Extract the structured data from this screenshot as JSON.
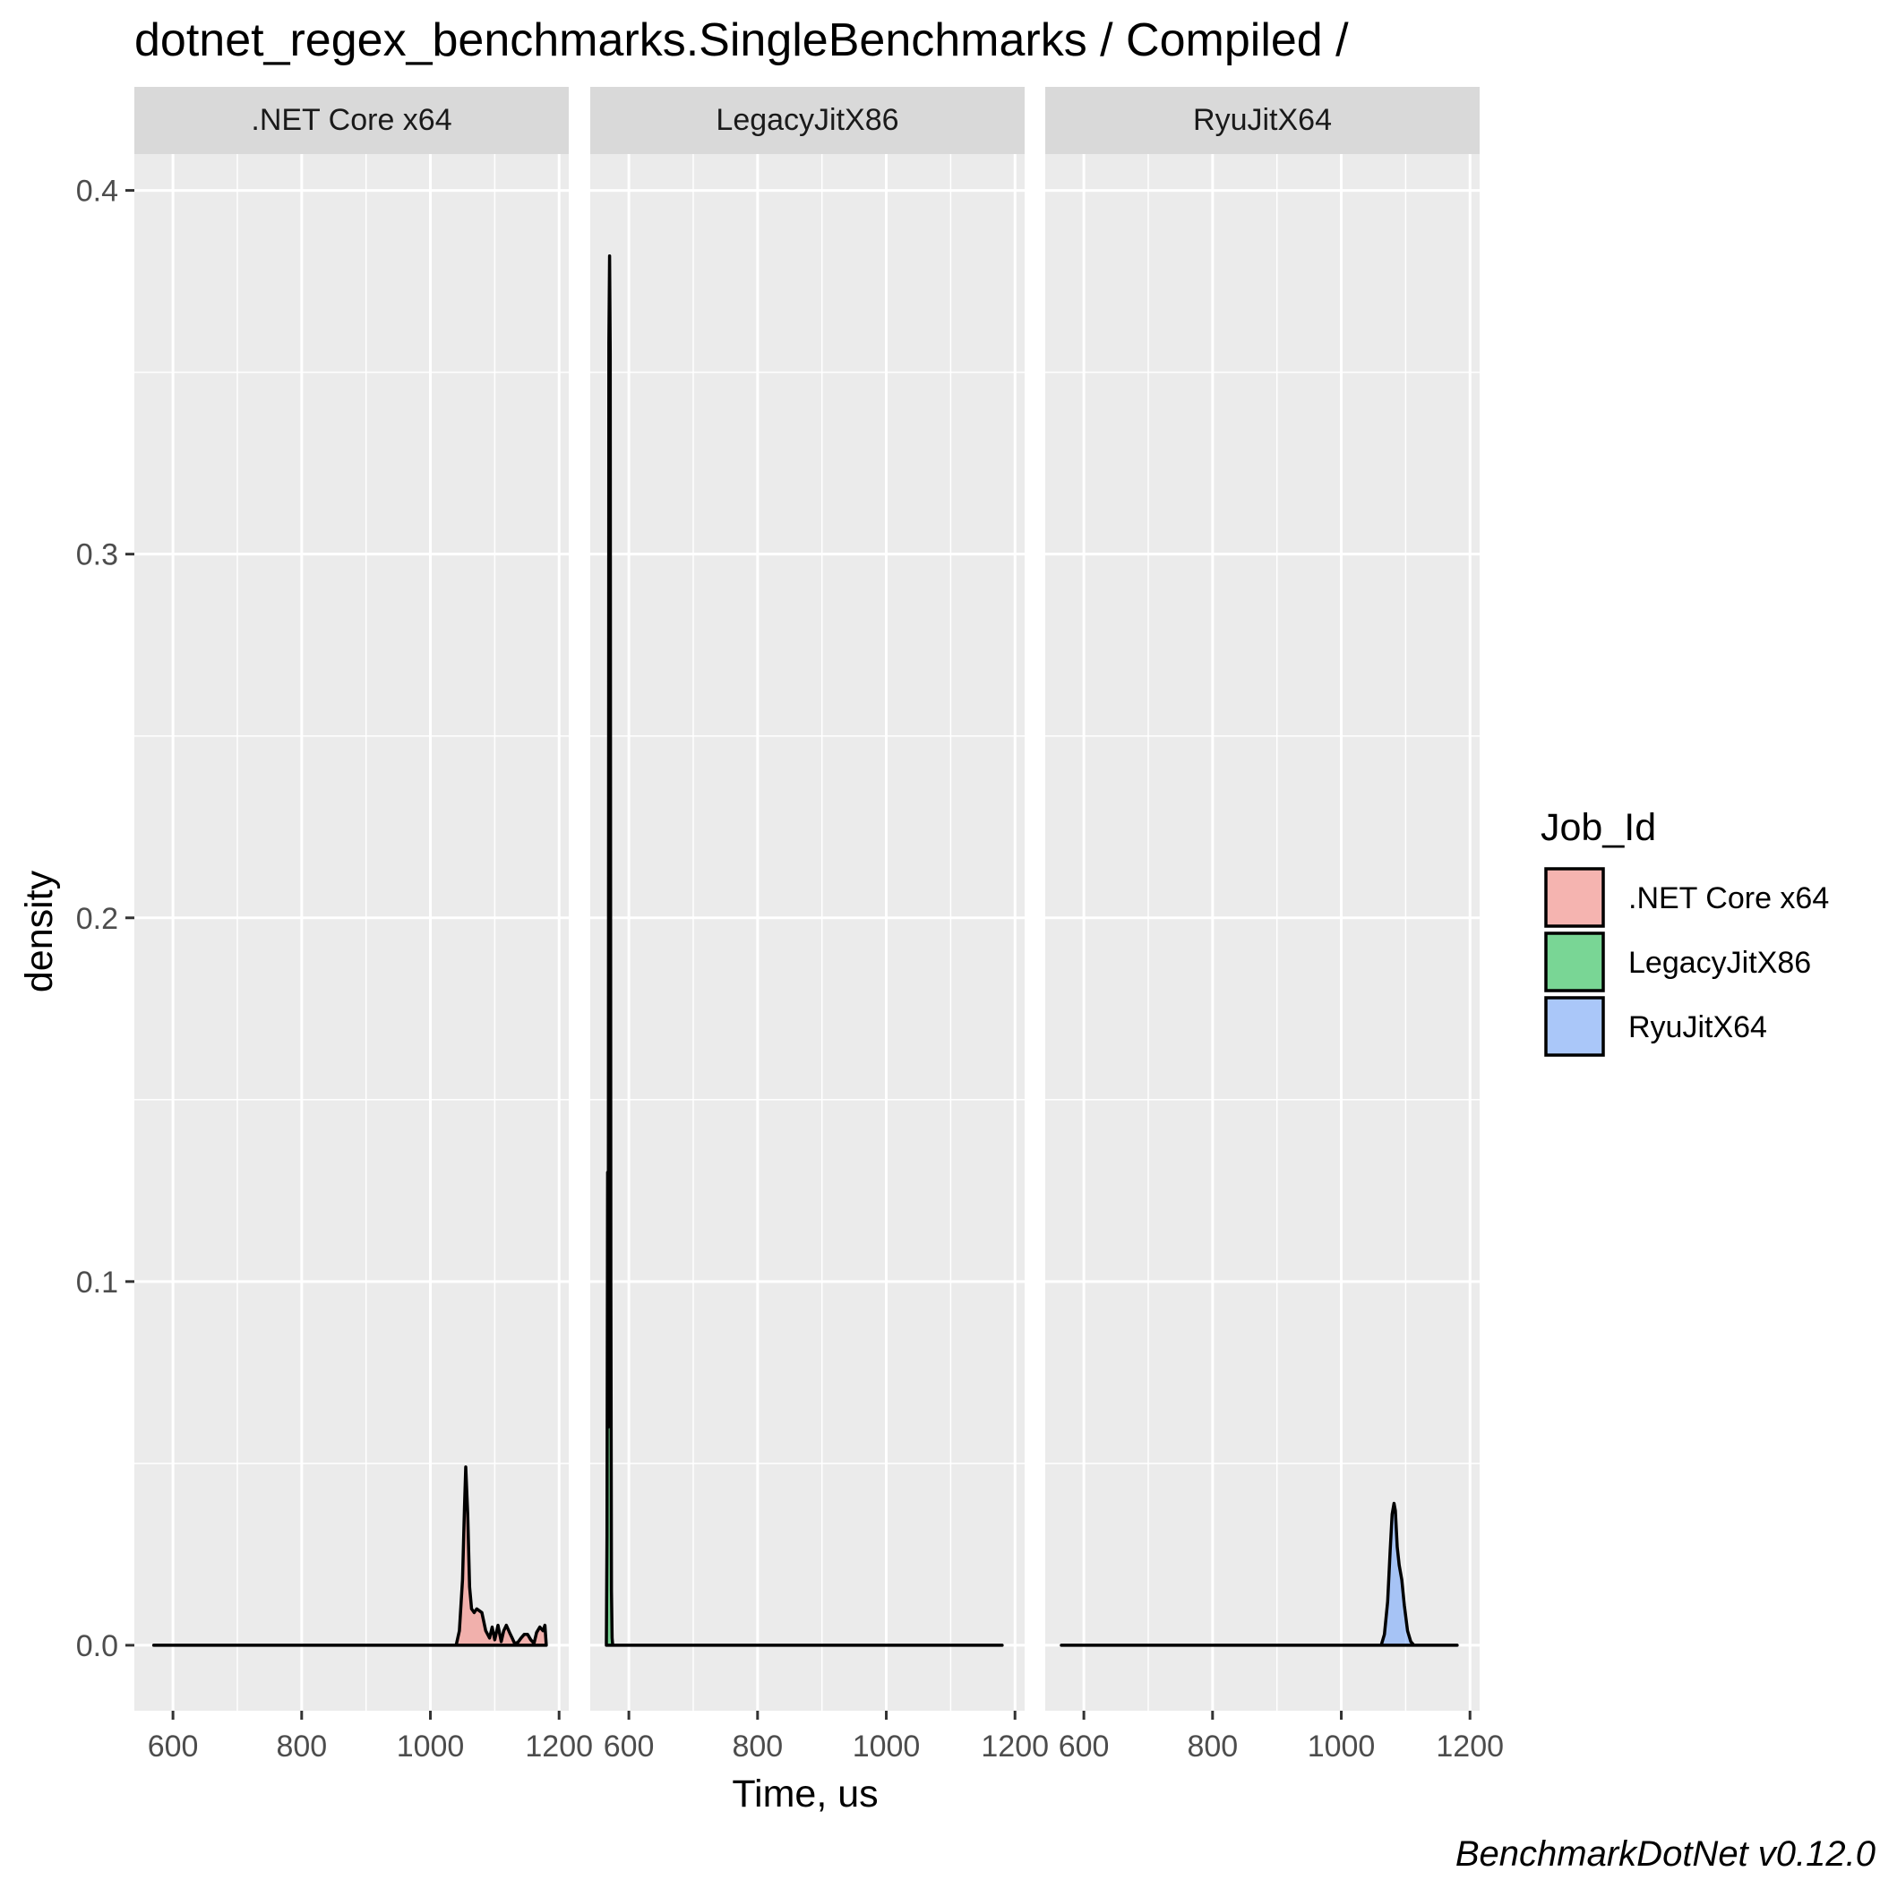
{
  "chart_data": {
    "type": "density",
    "title": "dotnet_regex_benchmarks.SingleBenchmarks / Compiled /",
    "xlabel": "Time, us",
    "ylabel": "density",
    "xlim": [
      540,
      1215
    ],
    "ylim": [
      -0.018,
      0.41
    ],
    "x_ticks": [
      600,
      800,
      1000,
      1200
    ],
    "x_tick_labels": [
      "600",
      "800",
      "1000",
      "1200"
    ],
    "y_ticks": [
      0.0,
      0.1,
      0.2,
      0.3,
      0.4
    ],
    "y_tick_labels": [
      "0.0",
      "0.1",
      "0.2",
      "0.3",
      "0.4"
    ],
    "grid": true,
    "legend": {
      "title": "Job_Id",
      "position": "right",
      "entries": [
        {
          "label": ".NET Core x64",
          "color": "#F8766D"
        },
        {
          "label": "LegacyJitX86",
          "color": "#00BA38"
        },
        {
          "label": "RyuJitX64",
          "color": "#619CFF"
        }
      ]
    },
    "facets": [
      {
        "label": ".NET Core x64",
        "color": "#F8766D",
        "x": [
          570,
          1040,
          1045,
          1050,
          1053,
          1055,
          1058,
          1061,
          1064,
          1068,
          1072,
          1080,
          1086,
          1092,
          1096,
          1100,
          1105,
          1110,
          1114,
          1118,
          1123,
          1127,
          1131,
          1136,
          1141,
          1146,
          1151,
          1156,
          1161,
          1165,
          1170,
          1175,
          1178,
          1180
        ],
        "y": [
          0,
          0,
          0.004,
          0.018,
          0.038,
          0.049,
          0.036,
          0.016,
          0.01,
          0.009,
          0.01,
          0.009,
          0.004,
          0.002,
          0.005,
          0.0015,
          0.0055,
          0.001,
          0.004,
          0.0055,
          0.0035,
          0.002,
          0.0005,
          0.0008,
          0.002,
          0.003,
          0.003,
          0.0015,
          0.0005,
          0.0035,
          0.005,
          0.004,
          0.0055,
          0
        ]
      },
      {
        "label": "LegacyJitX86",
        "color": "#00BA38",
        "x": [
          565,
          566,
          567,
          568,
          569,
          570,
          571,
          572,
          573,
          574,
          575,
          576,
          577,
          1180
        ],
        "y": [
          0,
          0.03,
          0.13,
          0.06,
          0.358,
          0.382,
          0.355,
          0.1,
          0.015,
          0.002,
          0,
          0,
          0,
          0
        ]
      },
      {
        "label": "RyuJitX64",
        "color": "#619CFF",
        "x": [
          565,
          1062,
          1067,
          1072,
          1076,
          1079,
          1082,
          1084,
          1087,
          1090,
          1094,
          1098,
          1103,
          1108,
          1113,
          1180
        ],
        "y": [
          0,
          0,
          0.003,
          0.012,
          0.026,
          0.036,
          0.039,
          0.037,
          0.027,
          0.022,
          0.018,
          0.011,
          0.004,
          0.001,
          0,
          0
        ]
      }
    ]
  },
  "caption": "BenchmarkDotNet v0.12.0"
}
